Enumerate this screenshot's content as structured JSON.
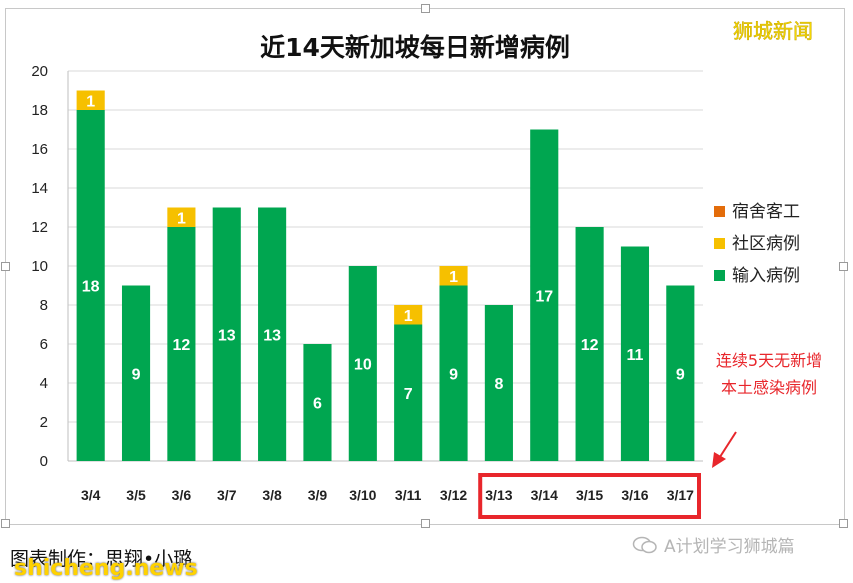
{
  "chart_data": {
    "type": "bar",
    "stacked": true,
    "title": "近14天新加坡每日新增病例",
    "categories": [
      "3/4",
      "3/5",
      "3/6",
      "3/7",
      "3/8",
      "3/9",
      "3/10",
      "3/11",
      "3/12",
      "3/13",
      "3/14",
      "3/15",
      "3/16",
      "3/17"
    ],
    "series": [
      {
        "name": "宿舍客工",
        "color": "#e36c0a",
        "values": [
          0,
          0,
          0,
          0,
          0,
          0,
          0,
          0,
          0,
          0,
          0,
          0,
          0,
          0
        ]
      },
      {
        "name": "社区病例",
        "color": "#f6c000",
        "values": [
          1,
          0,
          1,
          0,
          0,
          0,
          0,
          1,
          1,
          0,
          0,
          0,
          0,
          0
        ]
      },
      {
        "name": "输入病例",
        "color": "#00a650",
        "values": [
          18,
          9,
          12,
          13,
          13,
          6,
          10,
          7,
          9,
          8,
          17,
          12,
          11,
          9
        ]
      }
    ],
    "stack_order": [
      "输入病例",
      "社区病例",
      "宿舍客工"
    ],
    "ylim": [
      0,
      20
    ],
    "yticks": [
      0,
      2,
      4,
      6,
      8,
      10,
      12,
      14,
      16,
      18,
      20
    ],
    "grid": true,
    "legend_position": "right",
    "annotation": {
      "lines": [
        "连续5天无新增",
        "本土感染病例"
      ],
      "highlight_categories": [
        "3/13",
        "3/14",
        "3/15",
        "3/16",
        "3/17"
      ],
      "color": "#e8262b"
    }
  },
  "watermark": "狮城新闻",
  "credit": "图表制作：思翔•小璐",
  "site_mark": "shicheng.news",
  "wechat": "A计划学习狮城篇"
}
